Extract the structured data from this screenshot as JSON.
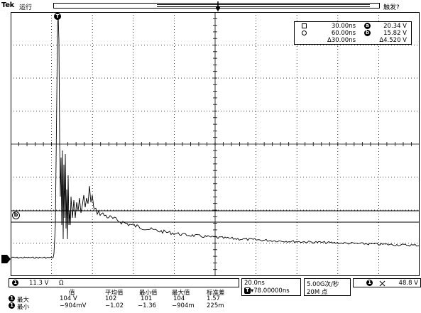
{
  "topbar": {
    "brand": "Tek",
    "run_status": "运行",
    "trigger_status": "触发?"
  },
  "cursor_readout": {
    "rows": [
      {
        "time": "30.00ns",
        "label": "a",
        "value": "20.34 V"
      },
      {
        "time": "60.00ns",
        "label": "b",
        "value": "15.82 V"
      },
      {
        "time": "Δ30.00ns",
        "label": "",
        "value": "Δ4.520 V"
      }
    ]
  },
  "waveform": {
    "channel_marker": "1",
    "trigger_marker": "T",
    "ref_label": "b"
  },
  "channel_bar": {
    "channel": "1",
    "scale": "11.3 V",
    "coupling": "Ω"
  },
  "timebase": {
    "scale": "20.0ns",
    "position": "▾78.00000ns",
    "sample_rate": "5.00G次/秒",
    "record_length": "20M 点"
  },
  "trigger_info": {
    "channel": "1",
    "icon": "rising-edge-icon",
    "level": "48.8 V"
  },
  "measurements": {
    "headers": [
      "值",
      "平均值",
      "最小值",
      "最大值",
      "标准差"
    ],
    "rows": [
      {
        "channel": "1",
        "name": "最大",
        "values": [
          "104 V",
          "102",
          "101",
          "104",
          "1.57"
        ]
      },
      {
        "channel": "1",
        "name": "最小",
        "values": [
          "−904mV",
          "−1.02",
          "−1.36",
          "−904m",
          "225m"
        ]
      }
    ]
  },
  "colors": {
    "background": "#ffffff",
    "trace": "#000000",
    "grid": "#000000"
  }
}
